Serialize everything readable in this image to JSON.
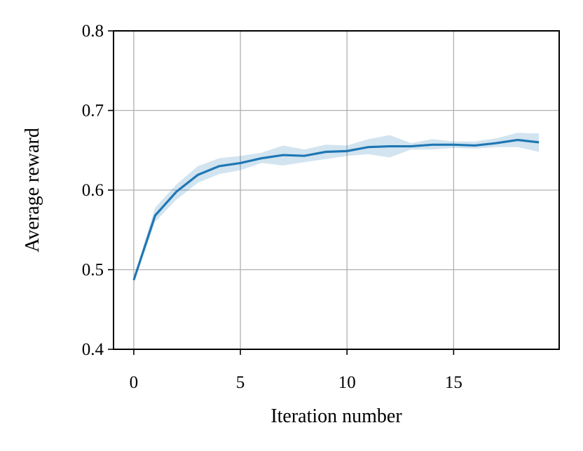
{
  "chart_data": {
    "type": "line",
    "x_label": "Iteration number",
    "y_label": "Average reward",
    "x": [
      0,
      1,
      2,
      3,
      4,
      5,
      6,
      7,
      8,
      9,
      10,
      11,
      12,
      13,
      14,
      15,
      16,
      17,
      18,
      19
    ],
    "series": [
      {
        "color": "#1f77b4",
        "values": [
          0.487,
          0.568,
          0.598,
          0.619,
          0.63,
          0.634,
          0.64,
          0.644,
          0.643,
          0.648,
          0.649,
          0.654,
          0.655,
          0.655,
          0.657,
          0.657,
          0.656,
          0.659,
          0.663,
          0.66
        ],
        "band_upper": [
          0.49,
          0.578,
          0.607,
          0.63,
          0.64,
          0.643,
          0.647,
          0.656,
          0.651,
          0.657,
          0.656,
          0.664,
          0.669,
          0.659,
          0.664,
          0.661,
          0.661,
          0.665,
          0.672,
          0.671
        ],
        "band_lower": [
          0.484,
          0.56,
          0.588,
          0.609,
          0.62,
          0.625,
          0.634,
          0.631,
          0.635,
          0.639,
          0.643,
          0.645,
          0.641,
          0.651,
          0.651,
          0.653,
          0.652,
          0.654,
          0.654,
          0.648
        ]
      }
    ],
    "xlim": [
      -0.95,
      19.95
    ],
    "ylim": [
      0.4,
      0.8
    ],
    "xticks": [
      0,
      5,
      10,
      15
    ],
    "yticks": [
      0.4,
      0.5,
      0.6,
      0.7,
      0.8
    ],
    "grid": true
  }
}
